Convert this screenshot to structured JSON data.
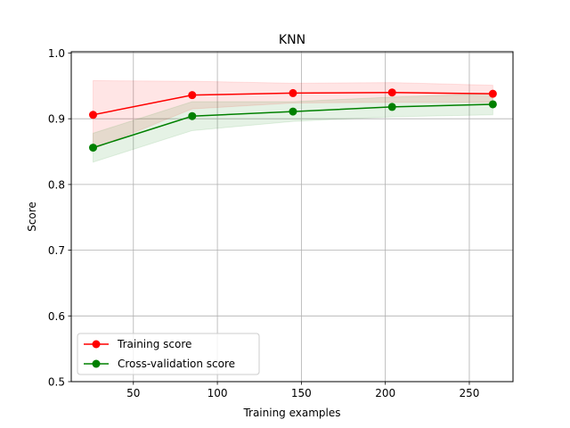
{
  "chart_data": {
    "type": "line",
    "title": "KNN",
    "xlabel": "Training examples",
    "ylabel": "Score",
    "xlim": [
      13,
      276
    ],
    "ylim": [
      0.5,
      1.002
    ],
    "xticks": [
      50,
      100,
      150,
      200,
      250
    ],
    "yticks": [
      0.5,
      0.6,
      0.7,
      0.8,
      0.9,
      1.0
    ],
    "xtick_labels": [
      "50",
      "100",
      "150",
      "200",
      "250"
    ],
    "ytick_labels": [
      "0.5",
      "0.6",
      "0.7",
      "0.8",
      "0.9",
      "1.0"
    ],
    "grid": true,
    "legend_position": "lower-left",
    "x": [
      26,
      85,
      145,
      204,
      264
    ],
    "series": [
      {
        "name": "Training score",
        "color": "#ff0000",
        "values": [
          0.906,
          0.936,
          0.939,
          0.94,
          0.938
        ],
        "band_low": [
          0.854,
          0.915,
          0.924,
          0.925,
          0.925
        ],
        "band_high": [
          0.958,
          0.957,
          0.954,
          0.955,
          0.951
        ]
      },
      {
        "name": "Cross-validation score",
        "color": "#008000",
        "values": [
          0.856,
          0.904,
          0.911,
          0.918,
          0.922
        ],
        "band_low": [
          0.834,
          0.882,
          0.896,
          0.903,
          0.906
        ],
        "band_high": [
          0.878,
          0.926,
          0.926,
          0.933,
          0.938
        ]
      }
    ]
  }
}
